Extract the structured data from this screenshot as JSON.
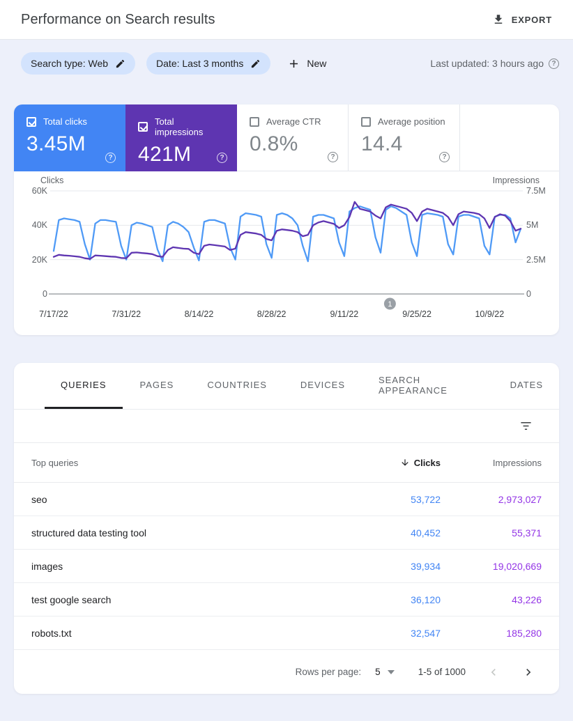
{
  "header": {
    "title": "Performance on Search results",
    "export_label": "EXPORT"
  },
  "filters": {
    "chips": [
      {
        "label": "Search type: Web"
      },
      {
        "label": "Date: Last 3 months"
      }
    ],
    "new_label": "New",
    "last_updated": "Last updated: 3 hours ago"
  },
  "metrics": [
    {
      "label": "Total clicks",
      "value": "3.45M",
      "checked": true,
      "bg": "#4285f4"
    },
    {
      "label": "Total impressions",
      "value": "421M",
      "checked": true,
      "bg": "#5e35b1"
    },
    {
      "label": "Average CTR",
      "value": "0.8%",
      "checked": false,
      "bg": "#ffffff"
    },
    {
      "label": "Average position",
      "value": "14.4",
      "checked": false,
      "bg": "#ffffff"
    }
  ],
  "chart_data": {
    "type": "line",
    "title": "Clicks and impressions over last 3 months (daily)",
    "left_axis": {
      "label": "Clicks",
      "ticks": [
        "60K",
        "40K",
        "20K",
        "0"
      ],
      "max": 60000
    },
    "right_axis": {
      "label": "Impressions",
      "ticks": [
        "7.5M",
        "5M",
        "2.5M",
        "0"
      ],
      "max": 7500000
    },
    "x_tick_labels": [
      "7/17/22",
      "7/31/22",
      "8/14/22",
      "8/28/22",
      "9/11/22",
      "9/25/22",
      "10/9/22"
    ],
    "x_tick_day_indices": [
      0,
      14,
      28,
      42,
      56,
      70,
      84
    ],
    "grid": true,
    "marker": {
      "label": "1",
      "fraction": 0.72
    },
    "series": [
      {
        "name": "Clicks",
        "axis": "left",
        "color": "#4f9af6",
        "values": [
          25000,
          43000,
          44000,
          43500,
          43000,
          42000,
          29000,
          20000,
          41000,
          43000,
          43000,
          42500,
          42000,
          28000,
          20000,
          40000,
          41500,
          41000,
          40000,
          39000,
          26000,
          19000,
          40000,
          42000,
          41000,
          39000,
          36000,
          27000,
          19500,
          42000,
          43000,
          43000,
          42000,
          41000,
          27000,
          20000,
          45000,
          47000,
          46500,
          46000,
          45000,
          29000,
          21000,
          46000,
          47000,
          46000,
          44000,
          40000,
          28000,
          19000,
          45000,
          46000,
          46000,
          45000,
          44000,
          30000,
          22000,
          48000,
          50000,
          51000,
          50000,
          49000,
          33000,
          24000,
          49000,
          51000,
          50000,
          48000,
          46000,
          30000,
          22000,
          46000,
          47000,
          46500,
          46000,
          45000,
          29000,
          23000,
          45000,
          46000,
          46000,
          45000,
          44000,
          28000,
          23000,
          45000,
          46000,
          46000,
          44000,
          30000,
          38000
        ]
      },
      {
        "name": "Impressions",
        "axis": "right",
        "color": "#5e35b1",
        "values": [
          2700000,
          2850000,
          2800000,
          2780000,
          2740000,
          2700000,
          2600000,
          2550000,
          2800000,
          2780000,
          2750000,
          2720000,
          2700000,
          2620000,
          2600000,
          3000000,
          3020000,
          2980000,
          2950000,
          2900000,
          2750000,
          2700000,
          3200000,
          3400000,
          3350000,
          3300000,
          3280000,
          3000000,
          2900000,
          3500000,
          3600000,
          3550000,
          3500000,
          3450000,
          3200000,
          3300000,
          4300000,
          4500000,
          4450000,
          4400000,
          4300000,
          4000000,
          3900000,
          4600000,
          4700000,
          4650000,
          4600000,
          4500000,
          4200000,
          4300000,
          5000000,
          5200000,
          5300000,
          5200000,
          5100000,
          4800000,
          5000000,
          5600000,
          6700000,
          6200000,
          6100000,
          6000000,
          5700000,
          5500000,
          6300000,
          6500000,
          6400000,
          6300000,
          6200000,
          5900000,
          5300000,
          6000000,
          6200000,
          6100000,
          6000000,
          5900000,
          5600000,
          5000000,
          5800000,
          6000000,
          5950000,
          5900000,
          5800000,
          5500000,
          4800000,
          5600000,
          5800000,
          5700000,
          5300000,
          4600000,
          4750000
        ]
      }
    ]
  },
  "tabs": [
    {
      "label": "QUERIES",
      "active": true
    },
    {
      "label": "PAGES",
      "active": false
    },
    {
      "label": "COUNTRIES",
      "active": false
    },
    {
      "label": "DEVICES",
      "active": false
    },
    {
      "label": "SEARCH APPEARANCE",
      "active": false
    },
    {
      "label": "DATES",
      "active": false
    }
  ],
  "table": {
    "columns": {
      "query": "Top queries",
      "clicks": "Clicks",
      "impressions": "Impressions"
    },
    "sort": {
      "column": "clicks",
      "direction": "desc"
    },
    "rows": [
      {
        "query": "seo",
        "clicks": "53,722",
        "impressions": "2,973,027"
      },
      {
        "query": "structured data testing tool",
        "clicks": "40,452",
        "impressions": "55,371"
      },
      {
        "query": "images",
        "clicks": "39,934",
        "impressions": "19,020,669"
      },
      {
        "query": "test google search",
        "clicks": "36,120",
        "impressions": "43,226"
      },
      {
        "query": "robots.txt",
        "clicks": "32,547",
        "impressions": "185,280"
      }
    ],
    "pagination": {
      "rows_per_page_label": "Rows per page:",
      "rows_per_page_value": "5",
      "range_label": "1-5 of 1000"
    }
  },
  "icons": {
    "export": "download",
    "edit": "pencil",
    "add": "plus",
    "help": "question-circle",
    "sort_desc": "arrow-down",
    "filter": "filter-list",
    "rows_caret": "triangle-down",
    "prev": "chevron-left",
    "next": "chevron-right",
    "marker": "annotation-badge"
  },
  "colors": {
    "clicks_accent": "#4285f4",
    "impressions_accent": "#5e35b1",
    "clicks_value_text": "#4285f4",
    "impressions_value_text": "#9334e6",
    "chip_bg": "#d3e3fd",
    "page_bg": "#edf0fa",
    "marker_bg": "#9aa0a6"
  }
}
